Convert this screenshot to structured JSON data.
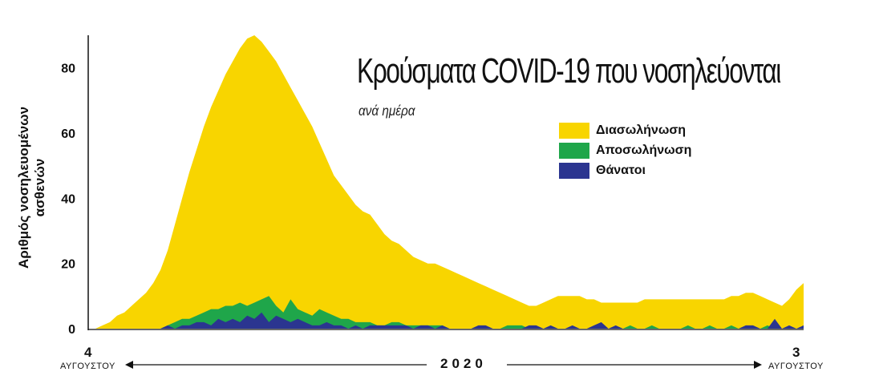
{
  "chart_data": {
    "type": "area",
    "title": "Κρούσματα COVID-19 που νοσηλεύονται",
    "subtitle": "ανά ημέρα",
    "ylabel": "Αριθμός νοσηλευομένων ασθενών",
    "ylim": [
      0,
      90
    ],
    "yticks": [
      0,
      20,
      40,
      60,
      80
    ],
    "x_start": {
      "day": "4",
      "month": "ΑΥΓΟΥΣΤΟΥ"
    },
    "x_end": {
      "day": "3",
      "month": "ΑΥΓΟΥΣΤΟΥ"
    },
    "year": "2020",
    "legend_position": "top-right",
    "series": [
      {
        "name": "Διασωλήνωση",
        "color": "#f8d500",
        "values": [
          0,
          0,
          1,
          2,
          4,
          5,
          7,
          9,
          11,
          14,
          18,
          24,
          32,
          40,
          48,
          55,
          62,
          68,
          73,
          78,
          82,
          86,
          89,
          90,
          88,
          85,
          82,
          78,
          74,
          70,
          66,
          62,
          57,
          52,
          47,
          44,
          41,
          38,
          36,
          35,
          32,
          29,
          27,
          26,
          24,
          22,
          21,
          20,
          20,
          19,
          18,
          17,
          16,
          15,
          14,
          13,
          12,
          11,
          10,
          9,
          8,
          7,
          7,
          8,
          9,
          10,
          10,
          10,
          10,
          9,
          9,
          8,
          8,
          8,
          8,
          8,
          8,
          9,
          9,
          9,
          9,
          9,
          9,
          9,
          9,
          9,
          9,
          9,
          9,
          10,
          10,
          11,
          11,
          10,
          9,
          8,
          7,
          9,
          12,
          14
        ]
      },
      {
        "name": "Αποσωλήνωση",
        "color": "#1fa64a",
        "values": [
          0,
          0,
          0,
          0,
          0,
          0,
          0,
          0,
          0,
          0,
          0,
          1,
          2,
          3,
          3,
          4,
          5,
          6,
          6,
          7,
          7,
          8,
          7,
          8,
          9,
          10,
          7,
          5,
          9,
          6,
          5,
          4,
          6,
          5,
          4,
          3,
          3,
          2,
          2,
          2,
          1,
          1,
          2,
          2,
          1,
          1,
          1,
          1,
          1,
          1,
          0,
          0,
          0,
          0,
          0,
          0,
          0,
          0,
          1,
          1,
          1,
          0,
          0,
          0,
          0,
          0,
          0,
          0,
          0,
          0,
          0,
          0,
          0,
          0,
          0,
          1,
          0,
          0,
          1,
          0,
          0,
          0,
          0,
          1,
          0,
          0,
          1,
          0,
          0,
          1,
          0,
          0,
          0,
          0,
          1,
          0,
          0,
          0,
          0,
          0
        ]
      },
      {
        "name": "Θάνατοι",
        "color": "#2b3590",
        "values": [
          0,
          0,
          0,
          0,
          0,
          0,
          0,
          0,
          0,
          0,
          0,
          1,
          0,
          1,
          1,
          2,
          2,
          1,
          3,
          2,
          3,
          2,
          4,
          3,
          5,
          2,
          4,
          3,
          2,
          3,
          2,
          1,
          1,
          2,
          1,
          1,
          0,
          1,
          0,
          1,
          1,
          1,
          1,
          1,
          1,
          0,
          1,
          1,
          0,
          1,
          0,
          0,
          0,
          0,
          1,
          1,
          0,
          0,
          0,
          0,
          0,
          1,
          1,
          0,
          1,
          0,
          0,
          1,
          0,
          0,
          1,
          2,
          0,
          1,
          0,
          0,
          0,
          0,
          0,
          0,
          0,
          0,
          0,
          0,
          0,
          0,
          0,
          0,
          0,
          0,
          0,
          1,
          1,
          0,
          0,
          3,
          0,
          1,
          0,
          1
        ]
      }
    ]
  }
}
